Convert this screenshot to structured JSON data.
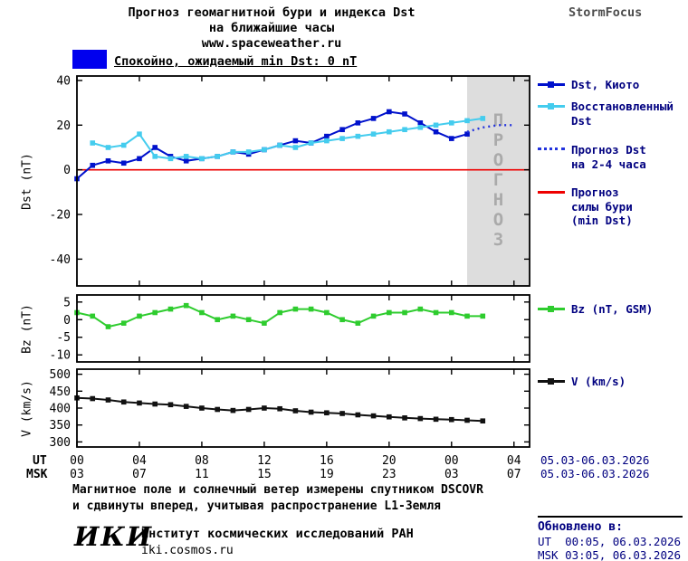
{
  "header": {
    "title_line1": "Прогноз геомагнитной бури и индекса Dst",
    "title_line2": "на ближайшие часы",
    "title_line3": "www.spaceweather.ru",
    "brand": "StormFocus"
  },
  "status": {
    "label": "Спокойно, ожидаемый min Dst: 0 nT",
    "swatch_color": "#0000ee"
  },
  "colors": {
    "navy_text": "#000080",
    "axis": "#000000",
    "forecast_region_fill": "#dddddd",
    "forecast_region_text": "#aaaaaa"
  },
  "axes": {
    "dst_ylabel": "Dst (nT)",
    "bz_ylabel": "Bz (nT)",
    "v_ylabel": "V (km/s)"
  },
  "xaxis": {
    "ut_label": "UT",
    "msk_label": "MSK",
    "tick_hours": [
      0,
      4,
      8,
      12,
      16,
      20,
      24,
      28
    ],
    "ut_tick_labels": [
      "00",
      "04",
      "08",
      "12",
      "16",
      "20",
      "00",
      "04"
    ],
    "msk_tick_labels": [
      "03",
      "07",
      "11",
      "15",
      "19",
      "23",
      "03",
      "07"
    ],
    "ut_date": "05.03-06.03.2026",
    "msk_date": "05.03-06.03.2026"
  },
  "legend": {
    "kyoto": "Dst, Киото",
    "restored": "Восстановленный\nDst",
    "forecast": "Прогноз Dst\nна 2-4 часа",
    "storm": "Прогноз\nсилы бури\n(min Dst)",
    "bz": "Bz (nT, GSM)",
    "v": "V (km/s)"
  },
  "chart_data": [
    {
      "type": "line",
      "panel": "dst",
      "ylabel": "Dst (nT)",
      "xlim": [
        0,
        29
      ],
      "ylim": [
        -52,
        42
      ],
      "yticks": [
        40,
        20,
        0,
        -20,
        -40
      ],
      "xticks": [
        0,
        4,
        8,
        12,
        16,
        20,
        24,
        28
      ],
      "series": [
        {
          "id": "dst-kyoto",
          "name": "Dst, Киото",
          "color": "#0011cc",
          "marker": "square",
          "x": [
            0,
            1,
            2,
            3,
            4,
            5,
            6,
            7,
            8,
            9,
            10,
            11,
            12,
            13,
            14,
            15,
            16,
            17,
            18,
            19,
            20,
            21,
            22,
            23,
            24,
            25
          ],
          "y": [
            -4,
            2,
            4,
            3,
            5,
            10,
            6,
            4,
            5,
            6,
            8,
            7,
            9,
            11,
            13,
            12,
            15,
            18,
            21,
            23,
            26,
            25,
            21,
            17,
            14,
            16
          ]
        },
        {
          "id": "dst-restored",
          "name": "Восстановленный Dst",
          "color": "#44ccee",
          "marker": "square",
          "x": [
            1,
            2,
            3,
            4,
            5,
            6,
            7,
            8,
            9,
            10,
            11,
            12,
            13,
            14,
            15,
            16,
            17,
            18,
            19,
            20,
            21,
            22,
            23,
            24,
            25,
            26
          ],
          "y": [
            12,
            10,
            11,
            16,
            6,
            5,
            6,
            5,
            6,
            8,
            8,
            9,
            11,
            10,
            12,
            13,
            14,
            15,
            16,
            17,
            18,
            19,
            20,
            21,
            22,
            23
          ]
        },
        {
          "id": "dst-forecast",
          "name": "Прогноз Dst на 2-4 часа",
          "color": "#2233dd",
          "style": "dotted",
          "x": [
            25,
            26,
            27,
            28
          ],
          "y": [
            17,
            19,
            20,
            20
          ]
        }
      ],
      "reference_line": {
        "y": 0,
        "color": "#ee0000",
        "name": "Прогноз силы бури (min Dst)"
      },
      "forecast_region": {
        "x_start": 25,
        "x_end": 29,
        "fill": "#dddddd",
        "label": "ПРОГНОЗ",
        "label_color": "#aaaaaa"
      }
    },
    {
      "type": "line",
      "panel": "bz",
      "ylabel": "Bz (nT)",
      "xlim": [
        0,
        29
      ],
      "ylim": [
        -12,
        7
      ],
      "yticks": [
        5,
        0,
        -5,
        -10
      ],
      "xticks": [
        0,
        4,
        8,
        12,
        16,
        20,
        24,
        28
      ],
      "series": [
        {
          "id": "bz",
          "name": "Bz (nT, GSM)",
          "color": "#2ecc2e",
          "marker": "square",
          "x": [
            0,
            1,
            2,
            3,
            4,
            5,
            6,
            7,
            8,
            9,
            10,
            11,
            12,
            13,
            14,
            15,
            16,
            17,
            18,
            19,
            20,
            21,
            22,
            23,
            24,
            25,
            26
          ],
          "y": [
            2,
            1,
            -2,
            -1,
            1,
            2,
            3,
            4,
            2,
            0,
            1,
            0,
            -1,
            2,
            3,
            3,
            2,
            0,
            -1,
            1,
            2,
            2,
            3,
            2,
            2,
            1,
            1
          ]
        }
      ]
    },
    {
      "type": "line",
      "panel": "v",
      "ylabel": "V (km/s)",
      "xlim": [
        0,
        29
      ],
      "ylim": [
        285,
        515
      ],
      "yticks": [
        500,
        450,
        400,
        350,
        300
      ],
      "xticks": [
        0,
        4,
        8,
        12,
        16,
        20,
        24,
        28
      ],
      "series": [
        {
          "id": "v",
          "name": "V (km/s)",
          "color": "#111111",
          "marker": "square",
          "x": [
            0,
            1,
            2,
            3,
            4,
            5,
            6,
            7,
            8,
            9,
            10,
            11,
            12,
            13,
            14,
            15,
            16,
            17,
            18,
            19,
            20,
            21,
            22,
            23,
            24,
            25,
            26
          ],
          "y": [
            430,
            428,
            424,
            418,
            415,
            412,
            410,
            405,
            400,
            396,
            393,
            396,
            400,
            398,
            392,
            388,
            386,
            384,
            380,
            377,
            374,
            371,
            369,
            367,
            366,
            364,
            362
          ]
        }
      ]
    }
  ],
  "footer": {
    "note_line1": "Магнитное поле и солнечный ветер измерены спутником DSCOVR",
    "note_line2": "и сдвинуты вперед, учитывая распространение L1-Земля",
    "logo": "ИКИ",
    "institute": "Институт космических исследований РАН",
    "institute_url": "iki.cosmos.ru"
  },
  "updated": {
    "heading": "Обновлено в:",
    "ut": "UT  00:05, 06.03.2026",
    "msk": "MSK 03:05, 06.03.2026"
  }
}
